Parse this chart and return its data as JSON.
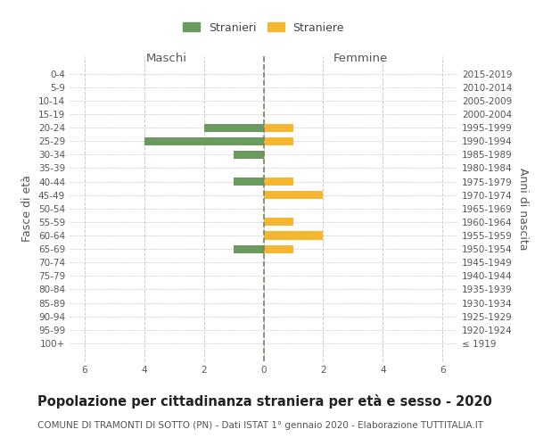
{
  "age_groups": [
    "0-4",
    "5-9",
    "10-14",
    "15-19",
    "20-24",
    "25-29",
    "30-34",
    "35-39",
    "40-44",
    "45-49",
    "50-54",
    "55-59",
    "60-64",
    "65-69",
    "70-74",
    "75-79",
    "80-84",
    "85-89",
    "90-94",
    "95-99",
    "100+"
  ],
  "birth_years": [
    "2015-2019",
    "2010-2014",
    "2005-2009",
    "2000-2004",
    "1995-1999",
    "1990-1994",
    "1985-1989",
    "1980-1984",
    "1975-1979",
    "1970-1974",
    "1965-1969",
    "1960-1964",
    "1955-1959",
    "1950-1954",
    "1945-1949",
    "1940-1944",
    "1935-1939",
    "1930-1934",
    "1925-1929",
    "1920-1924",
    "≤ 1919"
  ],
  "males": [
    0,
    0,
    0,
    0,
    2,
    4,
    1,
    0,
    1,
    0,
    0,
    0,
    0,
    1,
    0,
    0,
    0,
    0,
    0,
    0,
    0
  ],
  "females": [
    0,
    0,
    0,
    0,
    1,
    1,
    0,
    0,
    1,
    2,
    0,
    1,
    2,
    1,
    0,
    0,
    0,
    0,
    0,
    0,
    0
  ],
  "male_color": "#6b9a5e",
  "female_color": "#f5b731",
  "male_label": "Stranieri",
  "female_label": "Straniere",
  "x_ticks": [
    -6,
    -4,
    -2,
    0,
    2,
    4,
    6
  ],
  "x_tick_labels": [
    "6",
    "4",
    "2",
    "0",
    "2",
    "4",
    "6"
  ],
  "xlim": [
    -6.5,
    6.5
  ],
  "title": "Popolazione per cittadinanza straniera per età e sesso - 2020",
  "subtitle": "COMUNE DI TRAMONTI DI SOTTO (PN) - Dati ISTAT 1° gennaio 2020 - Elaborazione TUTTITALIA.IT",
  "left_header": "Maschi",
  "right_header": "Femmine",
  "left_axis_label": "Fasce di età",
  "right_axis_label": "Anni di nascita",
  "background_color": "#ffffff",
  "grid_color": "#cccccc",
  "center_line_color": "#808060",
  "title_fontsize": 10.5,
  "subtitle_fontsize": 7.5,
  "tick_fontsize": 7.5,
  "header_fontsize": 9.5
}
